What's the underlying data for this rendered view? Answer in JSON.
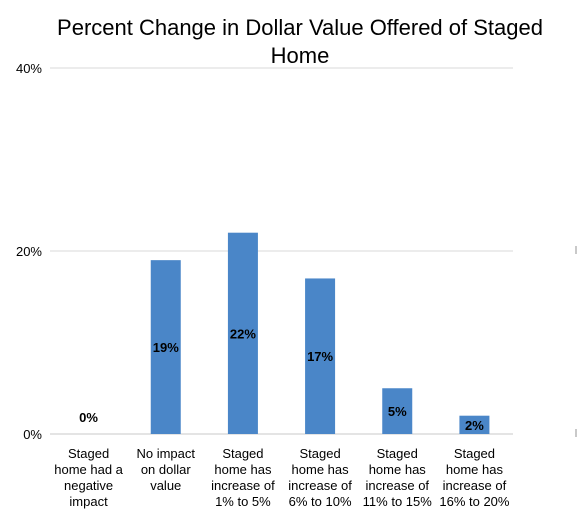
{
  "chart_data": {
    "type": "bar",
    "title": "Percent Change in Dollar Value Offered of Staged Home",
    "categories": [
      [
        "Staged",
        "home had a",
        "negative",
        "impact"
      ],
      [
        "No impact",
        "on dollar",
        "value"
      ],
      [
        "Staged",
        "home has",
        "increase of",
        "1% to 5%"
      ],
      [
        "Staged",
        "home has",
        "increase of",
        "6% to 10%"
      ],
      [
        "Staged",
        "home has",
        "increase of",
        "11% to 15%"
      ],
      [
        "Staged",
        "home has",
        "increase of",
        "16% to 20%"
      ]
    ],
    "values": [
      0,
      19,
      22,
      17,
      5,
      2
    ],
    "data_labels": [
      "0%",
      "19%",
      "22%",
      "17%",
      "5%",
      "2%"
    ],
    "y_ticks": [
      {
        "value": 0,
        "label": "0%"
      },
      {
        "value": 20,
        "label": "20%"
      },
      {
        "value": 40,
        "label": "40%"
      }
    ],
    "ylim": [
      0,
      40
    ],
    "xlabel": "",
    "ylabel": "",
    "grid": true,
    "legend": "none",
    "colors": {
      "bar": "#4a86c8",
      "grid": "#d9d9d9",
      "axis": "#c9c9c9",
      "text": "#000000"
    }
  }
}
